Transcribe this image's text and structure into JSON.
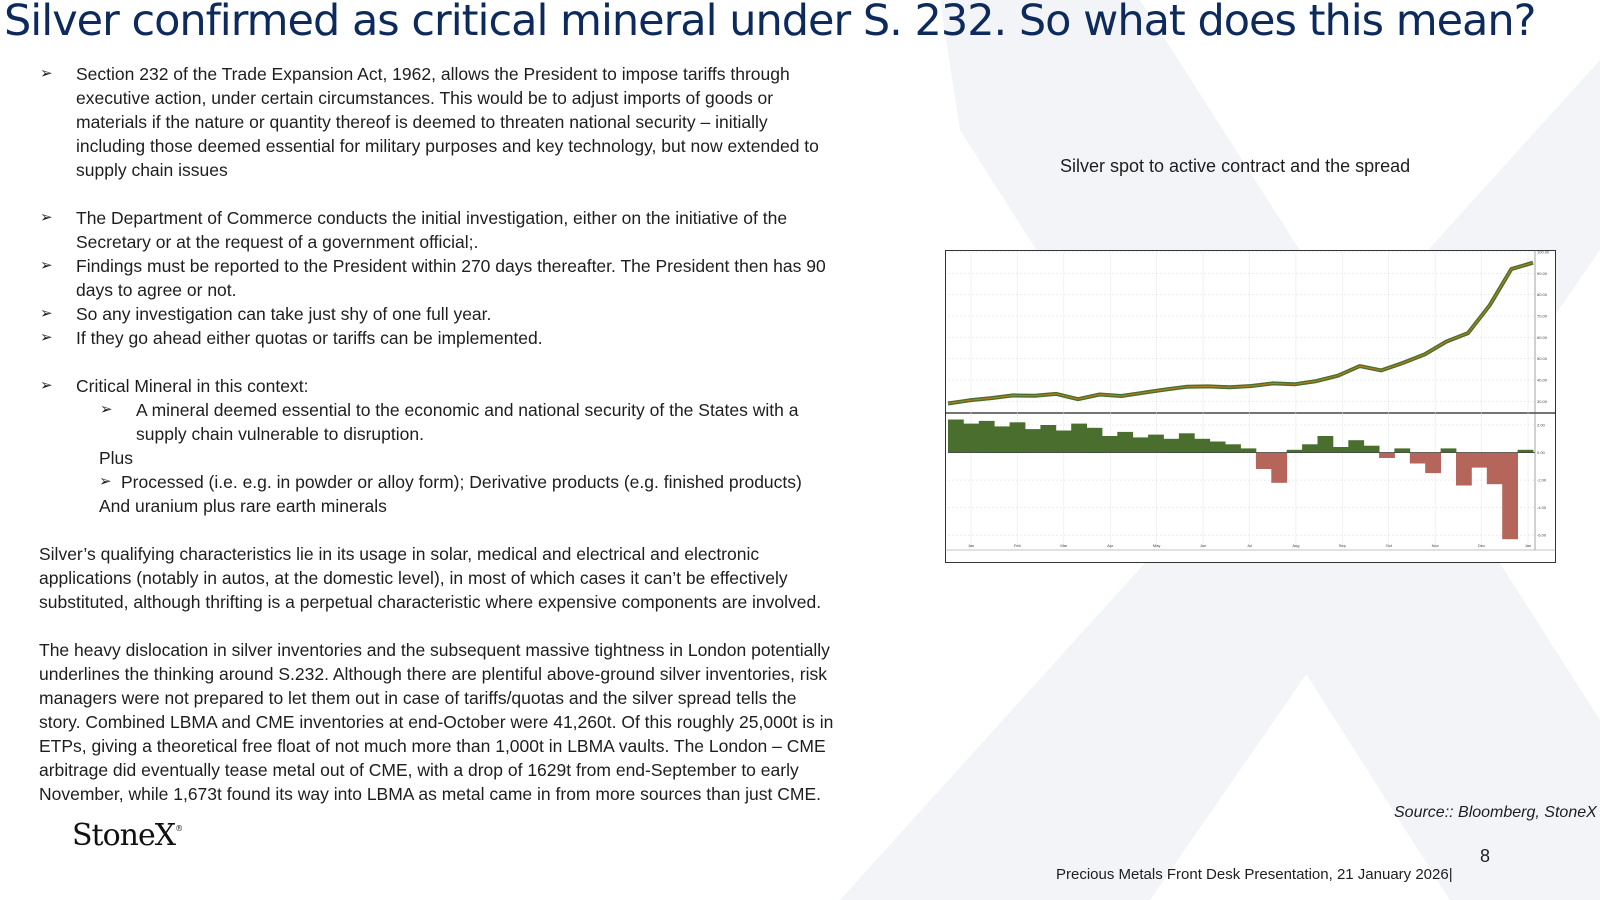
{
  "title": "Silver confirmed as critical mineral under S. 232.  So what does this mean?",
  "bullets_1": [
    "Section 232 of the Trade Expansion Act, 1962, allows the President to impose tariffs through",
    "executive action, under certain circumstances.  This would be to adjust imports of goods or",
    "materials if the nature or quantity thereof is deemed to threaten national security – initially",
    "including those deemed essential for military purposes and key technology, but now extended to",
    "supply chain issues"
  ],
  "bullets_2": [
    "The Department of Commerce conducts the initial investigation, either on the initiative of the",
    "Secretary or at the request of a government official;.",
    "Findings must be reported to the President within 270 days thereafter.  The President then has 90",
    "days to agree or not.",
    "So any investigation can take just shy of one full year.",
    "If they go ahead either quotas or tariffs can be implemented."
  ],
  "critical": {
    "heading": "Critical Mineral in this context:",
    "sub_1": "A mineral deemed essential to the economic and national security of the States with a",
    "sub_2": "supply chain vulnerable to disruption.",
    "plus": "Plus",
    "processed": "Processed (i.e. e.g. in powder or alloy form); Derivative products (e.g.  finished products)",
    "uranium": "And uranium plus rare earth minerals"
  },
  "para_1": [
    "Silver’s qualifying characteristics lie in its usage in solar, medical and electrical and electronic",
    "applications (notably in autos, at the domestic level), in most of which cases it can’t be effectively",
    "substituted, although thrifting is a perpetual characteristic where expensive components are involved."
  ],
  "para_2": [
    "The heavy dislocation in silver inventories and the subsequent massive tightness in London potentially",
    "underlines the thinking around S.232.  Although there are plentiful above-ground silver inventories, risk",
    "managers were not prepared to let them out in case of tariffs/quotas and the silver spread tells the",
    "story.  Combined LBMA and CME inventories at end-October were 41,260t.  Of this roughly 25,000t is in",
    "ETPs, giving a theoretical free float of not much more than 1,000t in LBMA vaults.  The London – CME",
    "arbitrage did eventually tease metal out of CME, with a drop of 1629t from end-September to early",
    "November, while 1,673t found its way into LBMA as metal came in from more sources than just CME."
  ],
  "chart_title": "Silver spot to active contract and the spread",
  "chart_data": {
    "type": "line",
    "title": "Silver spot to active contract and the spread",
    "x_labels": [
      "Jan",
      "Feb",
      "Mar",
      "Apr",
      "May",
      "Jun",
      "Jul",
      "Aug",
      "Sep",
      "Oct",
      "Nov",
      "Dec",
      "Jan"
    ],
    "top_panel": {
      "yticks": [
        "100.00",
        "90.00",
        "80.00",
        "70.00",
        "60.00",
        "50.00",
        "40.00",
        "30.00"
      ],
      "ylim": [
        25,
        100
      ],
      "series": [
        {
          "type": "line",
          "color": "#b07f1e",
          "values": [
            29,
            30.5,
            31.5,
            32.8,
            32.6,
            33.5,
            31,
            33.2,
            32.5,
            34,
            35.5,
            36.8,
            37,
            36.6,
            37.2,
            38.4,
            38,
            39.5,
            42,
            46.5,
            44.5,
            48,
            52,
            58,
            62,
            75,
            92,
            95
          ]
        }
      ]
    },
    "bottom_panel": {
      "yticks": [
        "2.00",
        "0.00",
        "-2.00",
        "-4.00",
        "-6.00"
      ],
      "ylim": [
        -6.5,
        2.8
      ],
      "series": [
        {
          "type": "area",
          "color": "#4a6e2e",
          "negative_color": "#b6655a",
          "values": [
            2.4,
            2.1,
            2.3,
            1.9,
            2.2,
            1.7,
            2.0,
            1.6,
            2.1,
            1.8,
            1.2,
            1.5,
            1.1,
            1.3,
            1.0,
            1.4,
            1.0,
            0.8,
            0.6,
            0.3,
            -1.2,
            -2.2,
            0.2,
            0.6,
            1.2,
            0.4,
            0.9,
            0.5,
            -0.4,
            0.3,
            -0.8,
            -1.5,
            0.3,
            -2.4,
            -1.1,
            -2.3,
            -6.3,
            0.2
          ]
        }
      ]
    }
  },
  "source": "Source:: Bloomberg, StoneX",
  "page_number": "8",
  "footer": "Precious Metals Front Desk Presentation, 21 January 2026|",
  "logo": "StoneX",
  "logo_mark": "®"
}
